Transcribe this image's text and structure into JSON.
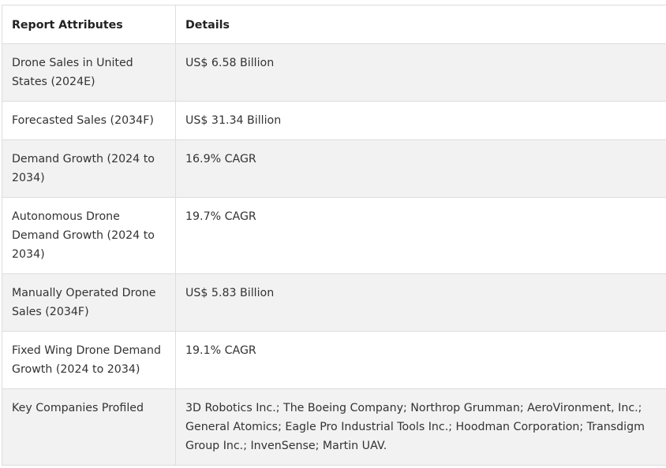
{
  "table": {
    "headers": [
      "Report Attributes",
      "Details"
    ],
    "rows": [
      {
        "attribute": "Drone Sales in United States (2024E)",
        "detail": "US$ 6.58 Billion"
      },
      {
        "attribute": "Forecasted Sales (2034F)",
        "detail": "US$ 31.34 Billion"
      },
      {
        "attribute": "Demand Growth (2024 to 2034)",
        "detail": "16.9% CAGR"
      },
      {
        "attribute": "Autonomous Drone Demand Growth (2024 to 2034)",
        "detail": "19.7% CAGR"
      },
      {
        "attribute": "Manually Operated Drone Sales (2034F)",
        "detail": "US$ 5.83 Billion"
      },
      {
        "attribute": "Fixed Wing Drone Demand Growth (2024 to 2034)",
        "detail": "19.1% CAGR"
      },
      {
        "attribute": "Key Companies Profiled",
        "detail": "3D Robotics Inc.; The Boeing Company; Northrop Grumman; AeroVironment, Inc.; General Atomics; Eagle Pro Industrial Tools Inc.; Hoodman Corporation; Transdigm Group Inc.; InvenSense; Martin UAV."
      }
    ]
  }
}
